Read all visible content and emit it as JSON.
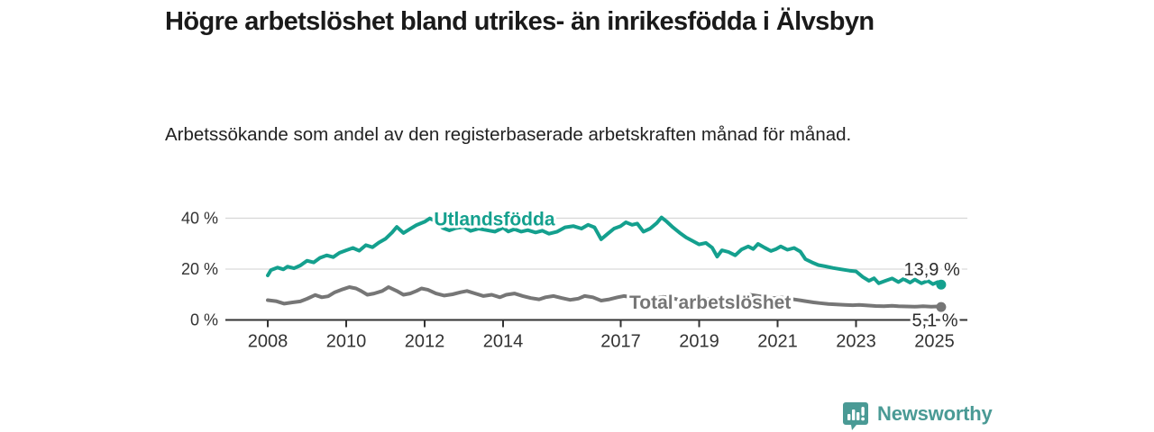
{
  "header": {
    "title": "Högre arbetslöshet bland utrikes- än inrikesfödda i Älvsbyn",
    "subtitle": "Arbetssökande som andel av den registerbaserade arbetskraften månad för månad."
  },
  "branding": {
    "logo_text": "Newsworthy",
    "logo_color": "#4a9a95",
    "logo_icon": "speech-bubble-bar-chart-icon"
  },
  "chart_data": {
    "type": "line",
    "title": "Högre arbetslöshet bland utrikes- än inrikesfödda i Älvsbyn",
    "subtitle": "Arbetssökande som andel av den registerbaserade arbetskraften månad för månad.",
    "unit": "%",
    "grid": "horizontal",
    "legend_position": "inline-labels",
    "x_axis": {
      "ticks": [
        2008,
        2010,
        2012,
        2014,
        2017,
        2019,
        2021,
        2023,
        2025
      ],
      "range": [
        2006.9,
        2025.8
      ]
    },
    "y_axis": {
      "ticks": [
        0,
        20,
        40
      ],
      "tick_labels": [
        "0 %",
        "20 %",
        "40 %"
      ],
      "range": [
        0,
        43
      ]
    },
    "style": {
      "axis_color": "#333333",
      "grid_color": "#d9d9d9",
      "tick_label_color": "#333333",
      "end_label_color": "#2b2b2b"
    },
    "series": [
      {
        "name": "Total arbetslöshet",
        "color": "#767676",
        "end_value": 5.1,
        "end_label": "5,1 %",
        "label_at": [
          2019.28,
          4.4
        ],
        "end_label_at": [
          2025.6,
          -2.4
        ],
        "end_label_anchor": "end",
        "points": [
          [
            2008,
            7.8
          ],
          [
            2008.21,
            7.4
          ],
          [
            2008.42,
            6.4
          ],
          [
            2008.63,
            6.9
          ],
          [
            2008.83,
            7.3
          ],
          [
            2009,
            8.3
          ],
          [
            2009.21,
            9.8
          ],
          [
            2009.38,
            8.9
          ],
          [
            2009.54,
            9.3
          ],
          [
            2009.71,
            10.9
          ],
          [
            2009.92,
            12.1
          ],
          [
            2010.08,
            12.9
          ],
          [
            2010.25,
            12.4
          ],
          [
            2010.38,
            11.4
          ],
          [
            2010.54,
            9.9
          ],
          [
            2010.71,
            10.4
          ],
          [
            2010.92,
            11.4
          ],
          [
            2011.08,
            12.9
          ],
          [
            2011.29,
            11.4
          ],
          [
            2011.46,
            9.9
          ],
          [
            2011.63,
            10.4
          ],
          [
            2011.79,
            11.4
          ],
          [
            2011.92,
            12.4
          ],
          [
            2012.08,
            11.9
          ],
          [
            2012.29,
            10.4
          ],
          [
            2012.5,
            9.6
          ],
          [
            2012.71,
            10.1
          ],
          [
            2012.92,
            10.9
          ],
          [
            2013.08,
            11.4
          ],
          [
            2013.29,
            10.4
          ],
          [
            2013.5,
            9.4
          ],
          [
            2013.71,
            9.9
          ],
          [
            2013.92,
            8.9
          ],
          [
            2014.08,
            9.9
          ],
          [
            2014.29,
            10.4
          ],
          [
            2014.5,
            9.4
          ],
          [
            2014.71,
            8.6
          ],
          [
            2014.92,
            8.1
          ],
          [
            2015.08,
            8.9
          ],
          [
            2015.29,
            9.4
          ],
          [
            2015.5,
            8.6
          ],
          [
            2015.71,
            7.9
          ],
          [
            2015.92,
            8.4
          ],
          [
            2016.08,
            9.4
          ],
          [
            2016.29,
            8.9
          ],
          [
            2016.5,
            7.6
          ],
          [
            2016.71,
            8.1
          ],
          [
            2016.92,
            8.9
          ],
          [
            2017.08,
            9.4
          ],
          [
            2017.29,
            8.9
          ],
          [
            2017.5,
            8.4
          ],
          [
            2017.71,
            7.9
          ],
          [
            2017.92,
            8.6
          ],
          [
            2018.08,
            9.1
          ],
          [
            2018.29,
            8.6
          ],
          [
            2018.5,
            7.9
          ],
          [
            2018.71,
            8.3
          ],
          [
            2018.92,
            8.9
          ],
          [
            2019.08,
            8.6
          ],
          [
            2019.29,
            8.1
          ],
          [
            2019.5,
            7.6
          ],
          [
            2019.71,
            7.9
          ],
          [
            2019.92,
            8.4
          ],
          [
            2020.08,
            9.1
          ],
          [
            2020.29,
            9.9
          ],
          [
            2020.5,
            9.4
          ],
          [
            2020.71,
            8.9
          ],
          [
            2020.92,
            8.6
          ],
          [
            2021.08,
            8.9
          ],
          [
            2021.29,
            8.4
          ],
          [
            2021.5,
            7.9
          ],
          [
            2021.71,
            7.4
          ],
          [
            2021.92,
            6.9
          ],
          [
            2022.08,
            6.6
          ],
          [
            2022.29,
            6.3
          ],
          [
            2022.5,
            6.1
          ],
          [
            2022.71,
            5.9
          ],
          [
            2022.92,
            5.8
          ],
          [
            2023.08,
            5.9
          ],
          [
            2023.29,
            5.7
          ],
          [
            2023.5,
            5.5
          ],
          [
            2023.71,
            5.4
          ],
          [
            2023.92,
            5.6
          ],
          [
            2024.08,
            5.4
          ],
          [
            2024.29,
            5.3
          ],
          [
            2024.5,
            5.2
          ],
          [
            2024.71,
            5.4
          ],
          [
            2024.92,
            5.2
          ],
          [
            2025.08,
            5.3
          ],
          [
            2025.17,
            5.1
          ]
        ]
      },
      {
        "name": "Utlandsfödda",
        "color": "#14a08e",
        "end_value": 13.9,
        "end_label": "13,9 %",
        "label_at": [
          2013.78,
          37.1
        ],
        "end_label_at": [
          2025.65,
          17.5
        ],
        "end_label_anchor": "end",
        "points": [
          [
            2008,
            17.5
          ],
          [
            2008.08,
            19.6
          ],
          [
            2008.25,
            20.6
          ],
          [
            2008.4,
            19.9
          ],
          [
            2008.5,
            21
          ],
          [
            2008.67,
            20.3
          ],
          [
            2008.83,
            21.4
          ],
          [
            2009,
            23.3
          ],
          [
            2009.17,
            22.6
          ],
          [
            2009.33,
            24.4
          ],
          [
            2009.5,
            25.4
          ],
          [
            2009.67,
            24.7
          ],
          [
            2009.83,
            26.4
          ],
          [
            2010,
            27.4
          ],
          [
            2010.17,
            28.3
          ],
          [
            2010.33,
            27.2
          ],
          [
            2010.5,
            29.4
          ],
          [
            2010.67,
            28.6
          ],
          [
            2010.83,
            30.4
          ],
          [
            2011,
            31.9
          ],
          [
            2011.17,
            34.4
          ],
          [
            2011.29,
            36.6
          ],
          [
            2011.46,
            34.2
          ],
          [
            2011.63,
            35.8
          ],
          [
            2011.79,
            37.3
          ],
          [
            2012,
            38.6
          ],
          [
            2012.13,
            39.9
          ],
          [
            2012.29,
            38.8
          ],
          [
            2012.46,
            36.2
          ],
          [
            2012.63,
            35.2
          ],
          [
            2012.79,
            36.1
          ],
          [
            2013,
            36.6
          ],
          [
            2013.17,
            35
          ],
          [
            2013.38,
            35.9
          ],
          [
            2013.58,
            35.3
          ],
          [
            2013.79,
            34.7
          ],
          [
            2014,
            36.3
          ],
          [
            2014.13,
            34.8
          ],
          [
            2014.29,
            35.7
          ],
          [
            2014.46,
            34.7
          ],
          [
            2014.63,
            35.3
          ],
          [
            2014.83,
            34.4
          ],
          [
            2015,
            35.1
          ],
          [
            2015.17,
            33.9
          ],
          [
            2015.38,
            34.7
          ],
          [
            2015.58,
            36.4
          ],
          [
            2015.79,
            36.9
          ],
          [
            2016,
            35.9
          ],
          [
            2016.17,
            37.4
          ],
          [
            2016.33,
            36.4
          ],
          [
            2016.5,
            31.7
          ],
          [
            2016.67,
            33.9
          ],
          [
            2016.83,
            35.9
          ],
          [
            2017,
            36.9
          ],
          [
            2017.13,
            38.4
          ],
          [
            2017.29,
            37.4
          ],
          [
            2017.42,
            37.9
          ],
          [
            2017.58,
            34.7
          ],
          [
            2017.75,
            35.9
          ],
          [
            2017.92,
            38.1
          ],
          [
            2018.04,
            40.3
          ],
          [
            2018.17,
            38.7
          ],
          [
            2018.33,
            36.4
          ],
          [
            2018.5,
            34.3
          ],
          [
            2018.67,
            32.4
          ],
          [
            2018.83,
            31.1
          ],
          [
            2019,
            29.7
          ],
          [
            2019.17,
            30.3
          ],
          [
            2019.33,
            28.4
          ],
          [
            2019.46,
            24.9
          ],
          [
            2019.58,
            27.4
          ],
          [
            2019.75,
            26.7
          ],
          [
            2019.92,
            25.4
          ],
          [
            2020.08,
            27.7
          ],
          [
            2020.25,
            28.9
          ],
          [
            2020.38,
            27.9
          ],
          [
            2020.5,
            29.9
          ],
          [
            2020.67,
            28.4
          ],
          [
            2020.83,
            27.1
          ],
          [
            2020.96,
            27.9
          ],
          [
            2021.08,
            28.9
          ],
          [
            2021.25,
            27.6
          ],
          [
            2021.42,
            28.3
          ],
          [
            2021.58,
            26.9
          ],
          [
            2021.71,
            23.9
          ],
          [
            2021.88,
            22.6
          ],
          [
            2022.04,
            21.6
          ],
          [
            2022.21,
            21.1
          ],
          [
            2022.42,
            20.4
          ],
          [
            2022.63,
            19.9
          ],
          [
            2022.83,
            19.4
          ],
          [
            2023,
            19.1
          ],
          [
            2023.17,
            16.9
          ],
          [
            2023.33,
            15.4
          ],
          [
            2023.46,
            16.4
          ],
          [
            2023.58,
            14.4
          ],
          [
            2023.75,
            15.4
          ],
          [
            2023.92,
            16.3
          ],
          [
            2024.08,
            14.9
          ],
          [
            2024.21,
            16.1
          ],
          [
            2024.38,
            14.7
          ],
          [
            2024.5,
            15.9
          ],
          [
            2024.67,
            14.4
          ],
          [
            2024.83,
            15.4
          ],
          [
            2024.96,
            14.1
          ],
          [
            2025.08,
            14.9
          ],
          [
            2025.17,
            13.9
          ]
        ]
      }
    ]
  }
}
